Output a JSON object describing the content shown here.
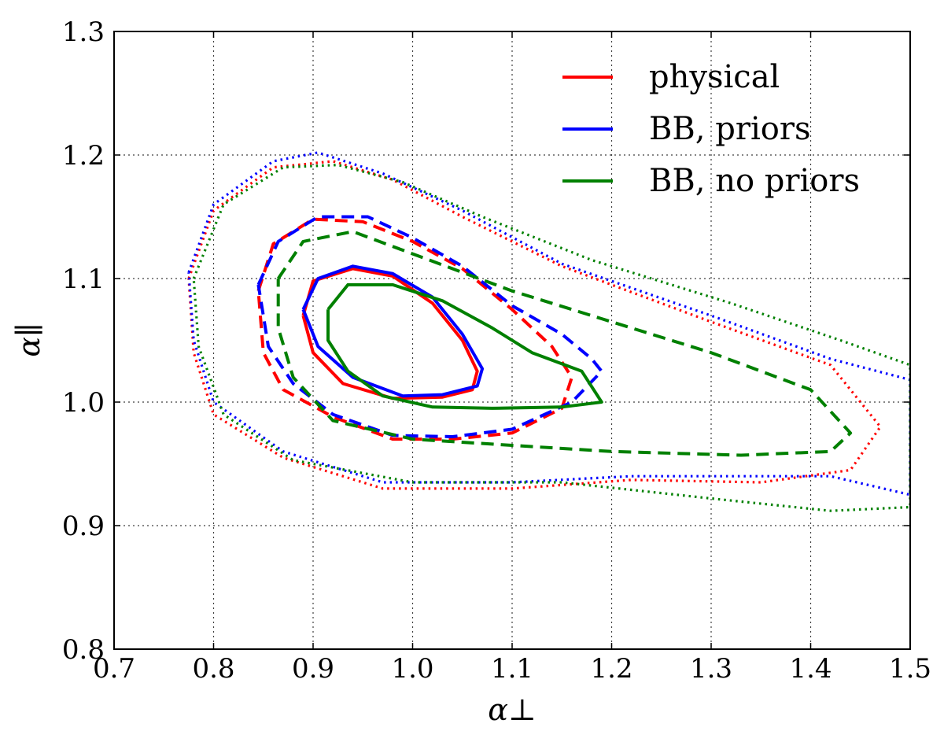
{
  "chart_data": {
    "type": "contour",
    "xlabel": "α⊥",
    "ylabel": "α∥",
    "xlim": [
      0.7,
      1.5
    ],
    "ylim": [
      0.8,
      1.3
    ],
    "xticks": [
      "0.7",
      "0.8",
      "0.9",
      "1.0",
      "1.1",
      "1.2",
      "1.3",
      "1.4",
      "1.5"
    ],
    "yticks": [
      "0.8",
      "0.9",
      "1.0",
      "1.1",
      "1.2",
      "1.3"
    ],
    "grid": true,
    "legend_position": "top-right",
    "series": [
      {
        "name": "physical",
        "color": "#ff0000",
        "contours": [
          {
            "level": "1-sigma",
            "style": "solid",
            "points": [
              [
                0.89,
                1.07
              ],
              [
                0.9,
                1.098
              ],
              [
                0.94,
                1.108
              ],
              [
                0.98,
                1.102
              ],
              [
                1.02,
                1.08
              ],
              [
                1.05,
                1.05
              ],
              [
                1.065,
                1.025
              ],
              [
                1.06,
                1.01
              ],
              [
                1.03,
                1.004
              ],
              [
                0.98,
                1.003
              ],
              [
                0.93,
                1.015
              ],
              [
                0.9,
                1.04
              ],
              [
                0.89,
                1.07
              ]
            ]
          },
          {
            "level": "2-sigma",
            "style": "dashed",
            "points": [
              [
                0.845,
                1.09
              ],
              [
                0.86,
                1.128
              ],
              [
                0.9,
                1.148
              ],
              [
                0.95,
                1.146
              ],
              [
                1.0,
                1.13
              ],
              [
                1.05,
                1.108
              ],
              [
                1.1,
                1.075
              ],
              [
                1.14,
                1.045
              ],
              [
                1.16,
                1.02
              ],
              [
                1.15,
                0.995
              ],
              [
                1.1,
                0.975
              ],
              [
                1.04,
                0.97
              ],
              [
                0.98,
                0.97
              ],
              [
                0.92,
                0.988
              ],
              [
                0.87,
                1.01
              ],
              [
                0.85,
                1.04
              ],
              [
                0.845,
                1.09
              ]
            ]
          },
          {
            "level": "3-sigma",
            "style": "dotted",
            "points": [
              [
                0.775,
                1.1
              ],
              [
                0.8,
                1.155
              ],
              [
                0.86,
                1.19
              ],
              [
                0.92,
                1.195
              ],
              [
                0.98,
                1.18
              ],
              [
                1.05,
                1.15
              ],
              [
                1.15,
                1.11
              ],
              [
                1.3,
                1.065
              ],
              [
                1.42,
                1.03
              ],
              [
                1.47,
                0.98
              ],
              [
                1.44,
                0.945
              ],
              [
                1.35,
                0.935
              ],
              [
                1.22,
                0.937
              ],
              [
                1.1,
                0.93
              ],
              [
                0.97,
                0.93
              ],
              [
                0.87,
                0.955
              ],
              [
                0.8,
                0.99
              ],
              [
                0.78,
                1.04
              ],
              [
                0.775,
                1.1
              ]
            ]
          }
        ]
      },
      {
        "name": "BB, priors",
        "color": "#0000ff",
        "contours": [
          {
            "level": "1-sigma",
            "style": "solid",
            "points": [
              [
                0.89,
                1.075
              ],
              [
                0.905,
                1.1
              ],
              [
                0.94,
                1.11
              ],
              [
                0.98,
                1.104
              ],
              [
                1.02,
                1.085
              ],
              [
                1.05,
                1.055
              ],
              [
                1.07,
                1.027
              ],
              [
                1.065,
                1.013
              ],
              [
                1.03,
                1.006
              ],
              [
                0.99,
                1.005
              ],
              [
                0.94,
                1.02
              ],
              [
                0.905,
                1.045
              ],
              [
                0.89,
                1.075
              ]
            ]
          },
          {
            "level": "2-sigma",
            "style": "dashed",
            "points": [
              [
                0.845,
                1.095
              ],
              [
                0.865,
                1.13
              ],
              [
                0.905,
                1.15
              ],
              [
                0.955,
                1.15
              ],
              [
                1.0,
                1.133
              ],
              [
                1.05,
                1.11
              ],
              [
                1.1,
                1.078
              ],
              [
                1.15,
                1.055
              ],
              [
                1.18,
                1.035
              ],
              [
                1.19,
                1.025
              ],
              [
                1.16,
                1.0
              ],
              [
                1.1,
                0.978
              ],
              [
                1.04,
                0.972
              ],
              [
                0.98,
                0.973
              ],
              [
                0.92,
                0.99
              ],
              [
                0.88,
                1.015
              ],
              [
                0.855,
                1.045
              ],
              [
                0.845,
                1.095
              ]
            ]
          },
          {
            "level": "3-sigma",
            "style": "dotted",
            "points": [
              [
                0.775,
                1.105
              ],
              [
                0.8,
                1.16
              ],
              [
                0.86,
                1.195
              ],
              [
                0.905,
                1.202
              ],
              [
                0.97,
                1.185
              ],
              [
                1.05,
                1.155
              ],
              [
                1.15,
                1.112
              ],
              [
                1.3,
                1.07
              ],
              [
                1.42,
                1.035
              ],
              [
                1.5,
                1.018
              ],
              [
                1.5,
                0.925
              ],
              [
                1.42,
                0.94
              ],
              [
                1.3,
                0.94
              ],
              [
                1.22,
                0.94
              ],
              [
                1.1,
                0.935
              ],
              [
                0.97,
                0.935
              ],
              [
                0.87,
                0.96
              ],
              [
                0.8,
                1.0
              ],
              [
                0.78,
                1.05
              ],
              [
                0.775,
                1.105
              ]
            ]
          }
        ]
      },
      {
        "name": "BB, no priors",
        "color": "#008000",
        "contours": [
          {
            "level": "1-sigma",
            "style": "solid",
            "points": [
              [
                0.915,
                1.075
              ],
              [
                0.935,
                1.095
              ],
              [
                0.98,
                1.095
              ],
              [
                1.03,
                1.082
              ],
              [
                1.08,
                1.06
              ],
              [
                1.12,
                1.04
              ],
              [
                1.17,
                1.025
              ],
              [
                1.19,
                1.0
              ],
              [
                1.15,
                0.996
              ],
              [
                1.08,
                0.995
              ],
              [
                1.02,
                0.996
              ],
              [
                0.97,
                1.005
              ],
              [
                0.935,
                1.025
              ],
              [
                0.915,
                1.05
              ],
              [
                0.915,
                1.075
              ]
            ]
          },
          {
            "level": "2-sigma",
            "style": "dashed",
            "points": [
              [
                0.865,
                1.1
              ],
              [
                0.89,
                1.13
              ],
              [
                0.94,
                1.138
              ],
              [
                1.0,
                1.12
              ],
              [
                1.1,
                1.09
              ],
              [
                1.2,
                1.065
              ],
              [
                1.3,
                1.04
              ],
              [
                1.4,
                1.01
              ],
              [
                1.44,
                0.975
              ],
              [
                1.42,
                0.96
              ],
              [
                1.33,
                0.957
              ],
              [
                1.2,
                0.96
              ],
              [
                1.1,
                0.965
              ],
              [
                1.0,
                0.97
              ],
              [
                0.92,
                0.985
              ],
              [
                0.88,
                1.02
              ],
              [
                0.865,
                1.06
              ],
              [
                0.865,
                1.1
              ]
            ]
          },
          {
            "level": "3-sigma",
            "style": "dotted",
            "points": [
              [
                0.78,
                1.1
              ],
              [
                0.81,
                1.16
              ],
              [
                0.87,
                1.19
              ],
              [
                0.925,
                1.192
              ],
              [
                0.99,
                1.178
              ],
              [
                1.07,
                1.15
              ],
              [
                1.18,
                1.115
              ],
              [
                1.32,
                1.08
              ],
              [
                1.43,
                1.05
              ],
              [
                1.5,
                1.03
              ],
              [
                1.5,
                0.915
              ],
              [
                1.42,
                0.912
              ],
              [
                1.3,
                0.922
              ],
              [
                1.15,
                0.935
              ],
              [
                1.0,
                0.935
              ],
              [
                0.88,
                0.953
              ],
              [
                0.81,
                0.99
              ],
              [
                0.785,
                1.045
              ],
              [
                0.78,
                1.1
              ]
            ]
          }
        ]
      }
    ]
  }
}
